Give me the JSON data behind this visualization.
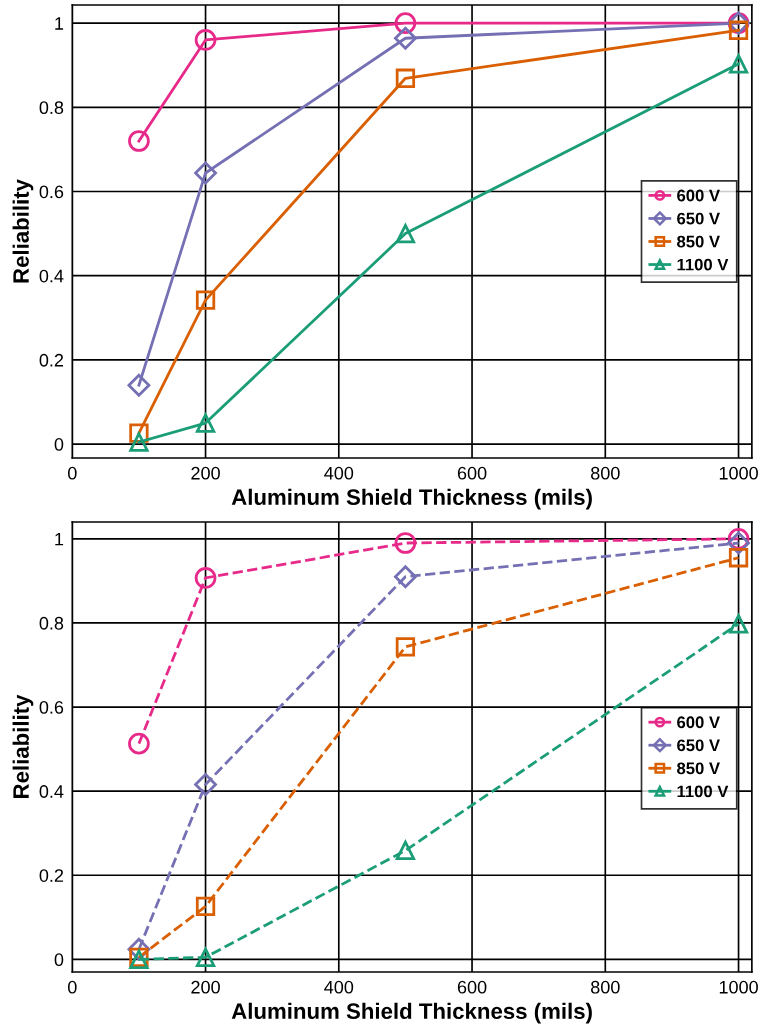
{
  "chart_data": [
    {
      "type": "line",
      "xlabel": "Aluminum Shield Thickness (mils)",
      "ylabel": "Reliability",
      "x": [
        100,
        200,
        500,
        1000
      ],
      "xlim": [
        0,
        1020
      ],
      "xticks": [
        0,
        200,
        400,
        600,
        800,
        1000
      ],
      "ylim": [
        -0.033,
        1.043
      ],
      "yticks": [
        0,
        0.2,
        0.4,
        0.6,
        0.8,
        1
      ],
      "grid": true,
      "legend": "right",
      "line_style": "solid",
      "series": [
        {
          "name": "600 V",
          "color": "#e7298a",
          "marker": "circle",
          "values": [
            0.72,
            0.96,
            1.0,
            1.0
          ]
        },
        {
          "name": "650 V",
          "color": "#7570b3",
          "marker": "diamond",
          "values": [
            0.14,
            0.644,
            0.964,
            1.0
          ]
        },
        {
          "name": "850 V",
          "color": "#d95f02",
          "marker": "square",
          "values": [
            0.026,
            0.342,
            0.869,
            0.983
          ]
        },
        {
          "name": "1100 V",
          "color": "#1b9e77",
          "marker": "triangle",
          "values": [
            0.005,
            0.05,
            0.5,
            0.903
          ]
        }
      ]
    },
    {
      "type": "line",
      "xlabel": "Aluminum Shield Thickness (mils)",
      "ylabel": "Reliability",
      "x": [
        100,
        200,
        500,
        1000
      ],
      "xlim": [
        0,
        1020
      ],
      "xticks": [
        0,
        200,
        400,
        600,
        800,
        1000
      ],
      "ylim": [
        -0.03,
        1.04
      ],
      "yticks": [
        0,
        0.2,
        0.4,
        0.6,
        0.8,
        1
      ],
      "grid": true,
      "legend": "right",
      "line_style": "dashed",
      "series": [
        {
          "name": "600 V",
          "color": "#e7298a",
          "marker": "circle",
          "values": [
            0.513,
            0.907,
            0.99,
            1.0
          ]
        },
        {
          "name": "650 V",
          "color": "#7570b3",
          "marker": "diamond",
          "values": [
            0.024,
            0.416,
            0.91,
            0.99
          ]
        },
        {
          "name": "850 V",
          "color": "#d95f02",
          "marker": "square",
          "values": [
            0.005,
            0.126,
            0.743,
            0.955
          ]
        },
        {
          "name": "1100 V",
          "color": "#1b9e77",
          "marker": "triangle",
          "values": [
            0.0,
            0.005,
            0.259,
            0.798
          ]
        }
      ]
    }
  ]
}
